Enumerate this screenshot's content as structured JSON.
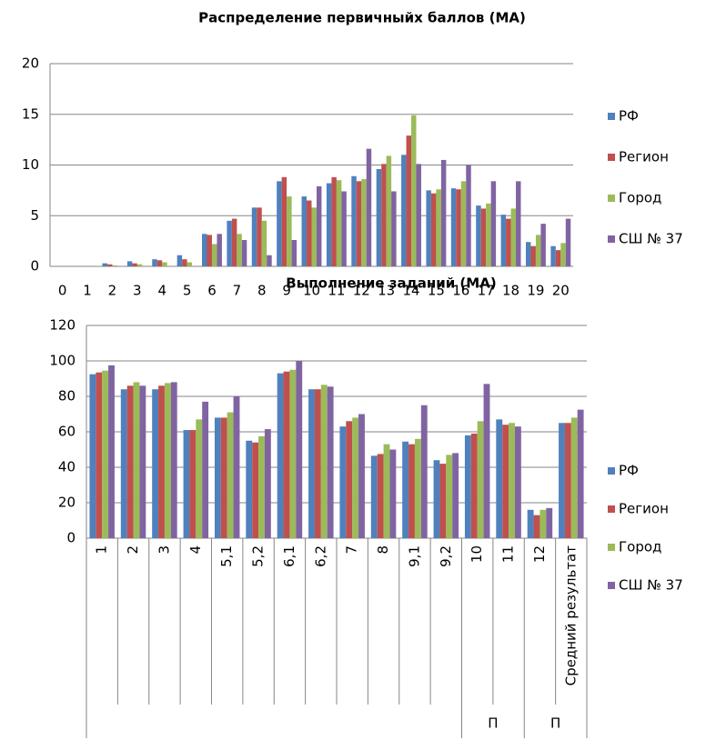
{
  "chart_data": [
    {
      "type": "bar",
      "title": "Распределение первичныйх баллов (МА)",
      "categories": [
        "0",
        "1",
        "2",
        "3",
        "4",
        "5",
        "6",
        "7",
        "8",
        "9",
        "10",
        "11",
        "12",
        "13",
        "14",
        "15",
        "16",
        "17",
        "18",
        "19",
        "20"
      ],
      "series": [
        {
          "name": "РФ",
          "color": "#4f81bd",
          "values": [
            0,
            0,
            0.3,
            0.5,
            0.7,
            1.1,
            3.2,
            4.5,
            5.8,
            8.4,
            6.9,
            8.2,
            8.9,
            9.6,
            11.0,
            7.5,
            7.7,
            6.0,
            5.1,
            2.4,
            2.0
          ]
        },
        {
          "name": "Регион",
          "color": "#c0504d",
          "values": [
            0,
            0,
            0.2,
            0.3,
            0.6,
            0.7,
            3.1,
            4.7,
            5.8,
            8.8,
            6.5,
            8.8,
            8.4,
            10.1,
            12.9,
            7.2,
            7.6,
            5.7,
            4.7,
            2.0,
            1.6
          ]
        },
        {
          "name": "Город",
          "color": "#9bbb59",
          "values": [
            0,
            0,
            0.1,
            0.2,
            0.4,
            0.4,
            2.2,
            3.2,
            4.5,
            6.9,
            5.8,
            8.5,
            8.6,
            10.9,
            14.9,
            7.6,
            8.4,
            6.2,
            5.7,
            3.1,
            2.3
          ]
        },
        {
          "name": "СШ № 37",
          "color": "#8064a2",
          "values": [
            0,
            0,
            0,
            0,
            0,
            0,
            3.2,
            2.6,
            1.1,
            2.6,
            7.9,
            7.4,
            11.6,
            7.4,
            10.1,
            10.5,
            10.0,
            8.4,
            8.4,
            4.2,
            4.7
          ]
        }
      ],
      "ylim": [
        0,
        20
      ],
      "yticks": [
        0,
        5,
        10,
        15,
        20
      ],
      "grid": true,
      "legend": "right"
    },
    {
      "type": "bar",
      "title": "Выполнение заданий (МА)",
      "categories": [
        "1",
        "2",
        "3",
        "4",
        "5,1",
        "5,2",
        "6,1",
        "6,2",
        "7",
        "8",
        "9,1",
        "9,2",
        "10",
        "11",
        "12",
        "Средний результат"
      ],
      "groups": [
        {
          "label": "П",
          "from": 12,
          "to": 13
        },
        {
          "label": "П",
          "from": 14,
          "to": 15
        }
      ],
      "series": [
        {
          "name": "РФ",
          "color": "#4f81bd",
          "values": [
            92.5,
            84,
            84,
            61,
            68,
            55,
            93,
            84,
            63,
            46.5,
            54.5,
            44,
            58,
            67,
            16,
            65
          ]
        },
        {
          "name": "Регион",
          "color": "#c0504d",
          "values": [
            93.5,
            86,
            86,
            61,
            68,
            54,
            94,
            84,
            66,
            47.5,
            53,
            42,
            59,
            64,
            13,
            65
          ]
        },
        {
          "name": "Город",
          "color": "#9bbb59",
          "values": [
            94.5,
            88,
            87.5,
            67,
            71,
            57.5,
            95,
            86.5,
            68,
            53,
            56,
            47,
            66,
            65,
            16,
            68
          ]
        },
        {
          "name": "СШ № 37",
          "color": "#8064a2",
          "values": [
            97.5,
            86,
            88,
            77,
            80,
            61.5,
            100,
            85.5,
            70,
            50,
            75,
            48,
            87,
            63,
            17,
            72.5
          ]
        }
      ],
      "ylim": [
        0,
        120
      ],
      "yticks": [
        0,
        20,
        40,
        60,
        80,
        100,
        120
      ],
      "grid": true,
      "legend": "right"
    }
  ]
}
